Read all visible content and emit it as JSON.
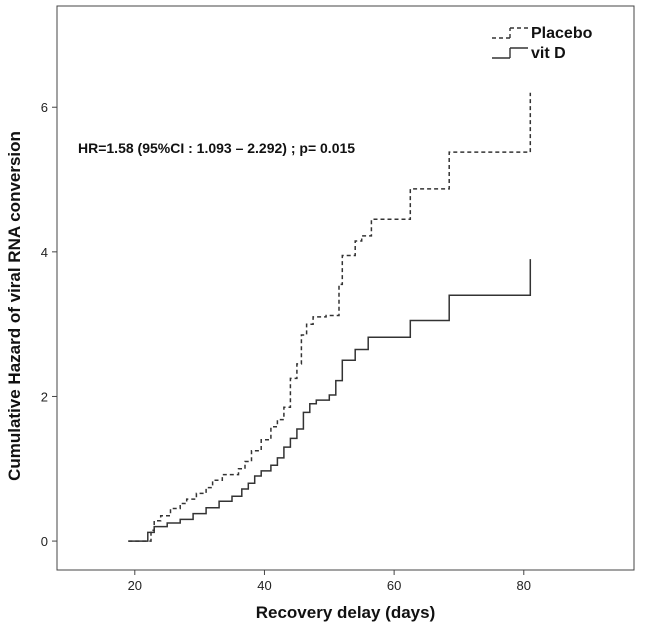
{
  "chart_data": {
    "type": "line",
    "subtype": "step",
    "title": "",
    "xlabel": "Recovery delay (days)",
    "ylabel": "Cumulative Hazard of viral RNA conversion",
    "xlim": [
      8,
      97
    ],
    "ylim": [
      -0.4,
      7.4
    ],
    "xticks": [
      20,
      40,
      60,
      80
    ],
    "yticks": [
      0,
      2,
      4,
      6
    ],
    "grid": false,
    "legend_position": "top-right",
    "annotation": "HR=1.58 (95%CI : 1.093 – 2.292) ; p= 0.015",
    "series": [
      {
        "name": "Placebo",
        "line_style": "dashed",
        "color": "#333333",
        "x": [
          19,
          22.5,
          23,
          24,
          25.5,
          27,
          28,
          29.5,
          31,
          32,
          33.5,
          36,
          37,
          38,
          39.5,
          41,
          42,
          43,
          44,
          45,
          45.7,
          46.5,
          47.5,
          49.5,
          51.5,
          52,
          54,
          55,
          56.5,
          62.5,
          68.5,
          81
        ],
        "y": [
          0,
          0.15,
          0.28,
          0.35,
          0.45,
          0.52,
          0.58,
          0.66,
          0.74,
          0.84,
          0.92,
          1.0,
          1.1,
          1.25,
          1.4,
          1.58,
          1.68,
          1.85,
          2.25,
          2.45,
          2.85,
          3.0,
          3.1,
          3.12,
          3.55,
          3.95,
          4.15,
          4.22,
          4.45,
          4.87,
          5.38,
          6.2
        ]
      },
      {
        "name": "vit D",
        "line_style": "solid",
        "color": "#333333",
        "x": [
          19,
          22,
          23,
          25,
          27,
          29,
          31,
          33,
          35,
          36.5,
          37.5,
          38.5,
          39.5,
          41,
          42,
          43,
          44,
          45,
          46,
          47,
          48,
          50,
          51,
          52,
          54,
          56,
          62.5,
          68.5,
          81
        ],
        "y": [
          0,
          0.12,
          0.2,
          0.25,
          0.3,
          0.38,
          0.46,
          0.55,
          0.62,
          0.72,
          0.8,
          0.9,
          0.97,
          1.05,
          1.15,
          1.3,
          1.42,
          1.55,
          1.78,
          1.9,
          1.95,
          2.02,
          2.22,
          2.5,
          2.65,
          2.82,
          3.05,
          3.4,
          3.9
        ]
      }
    ]
  }
}
